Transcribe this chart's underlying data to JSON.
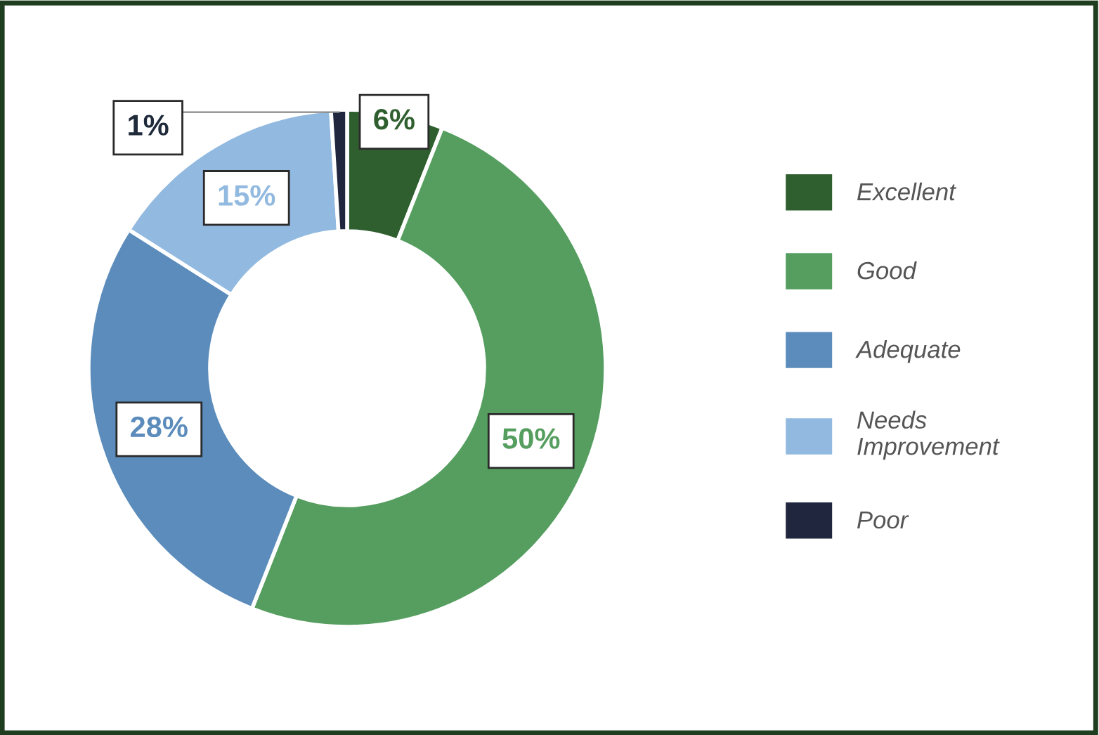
{
  "chart_data": {
    "type": "donut",
    "categories": [
      "Excellent",
      "Good",
      "Adequate",
      "Needs Improvement",
      "Poor"
    ],
    "values": [
      6,
      50,
      28,
      15,
      1
    ],
    "colors": [
      "#2f5f2f",
      "#559e5f",
      "#5b8cbb",
      "#92b9df",
      "#20263d"
    ],
    "value_labels": [
      "6%",
      "50%",
      "28%",
      "15%",
      "1%"
    ],
    "legend": "right"
  }
}
